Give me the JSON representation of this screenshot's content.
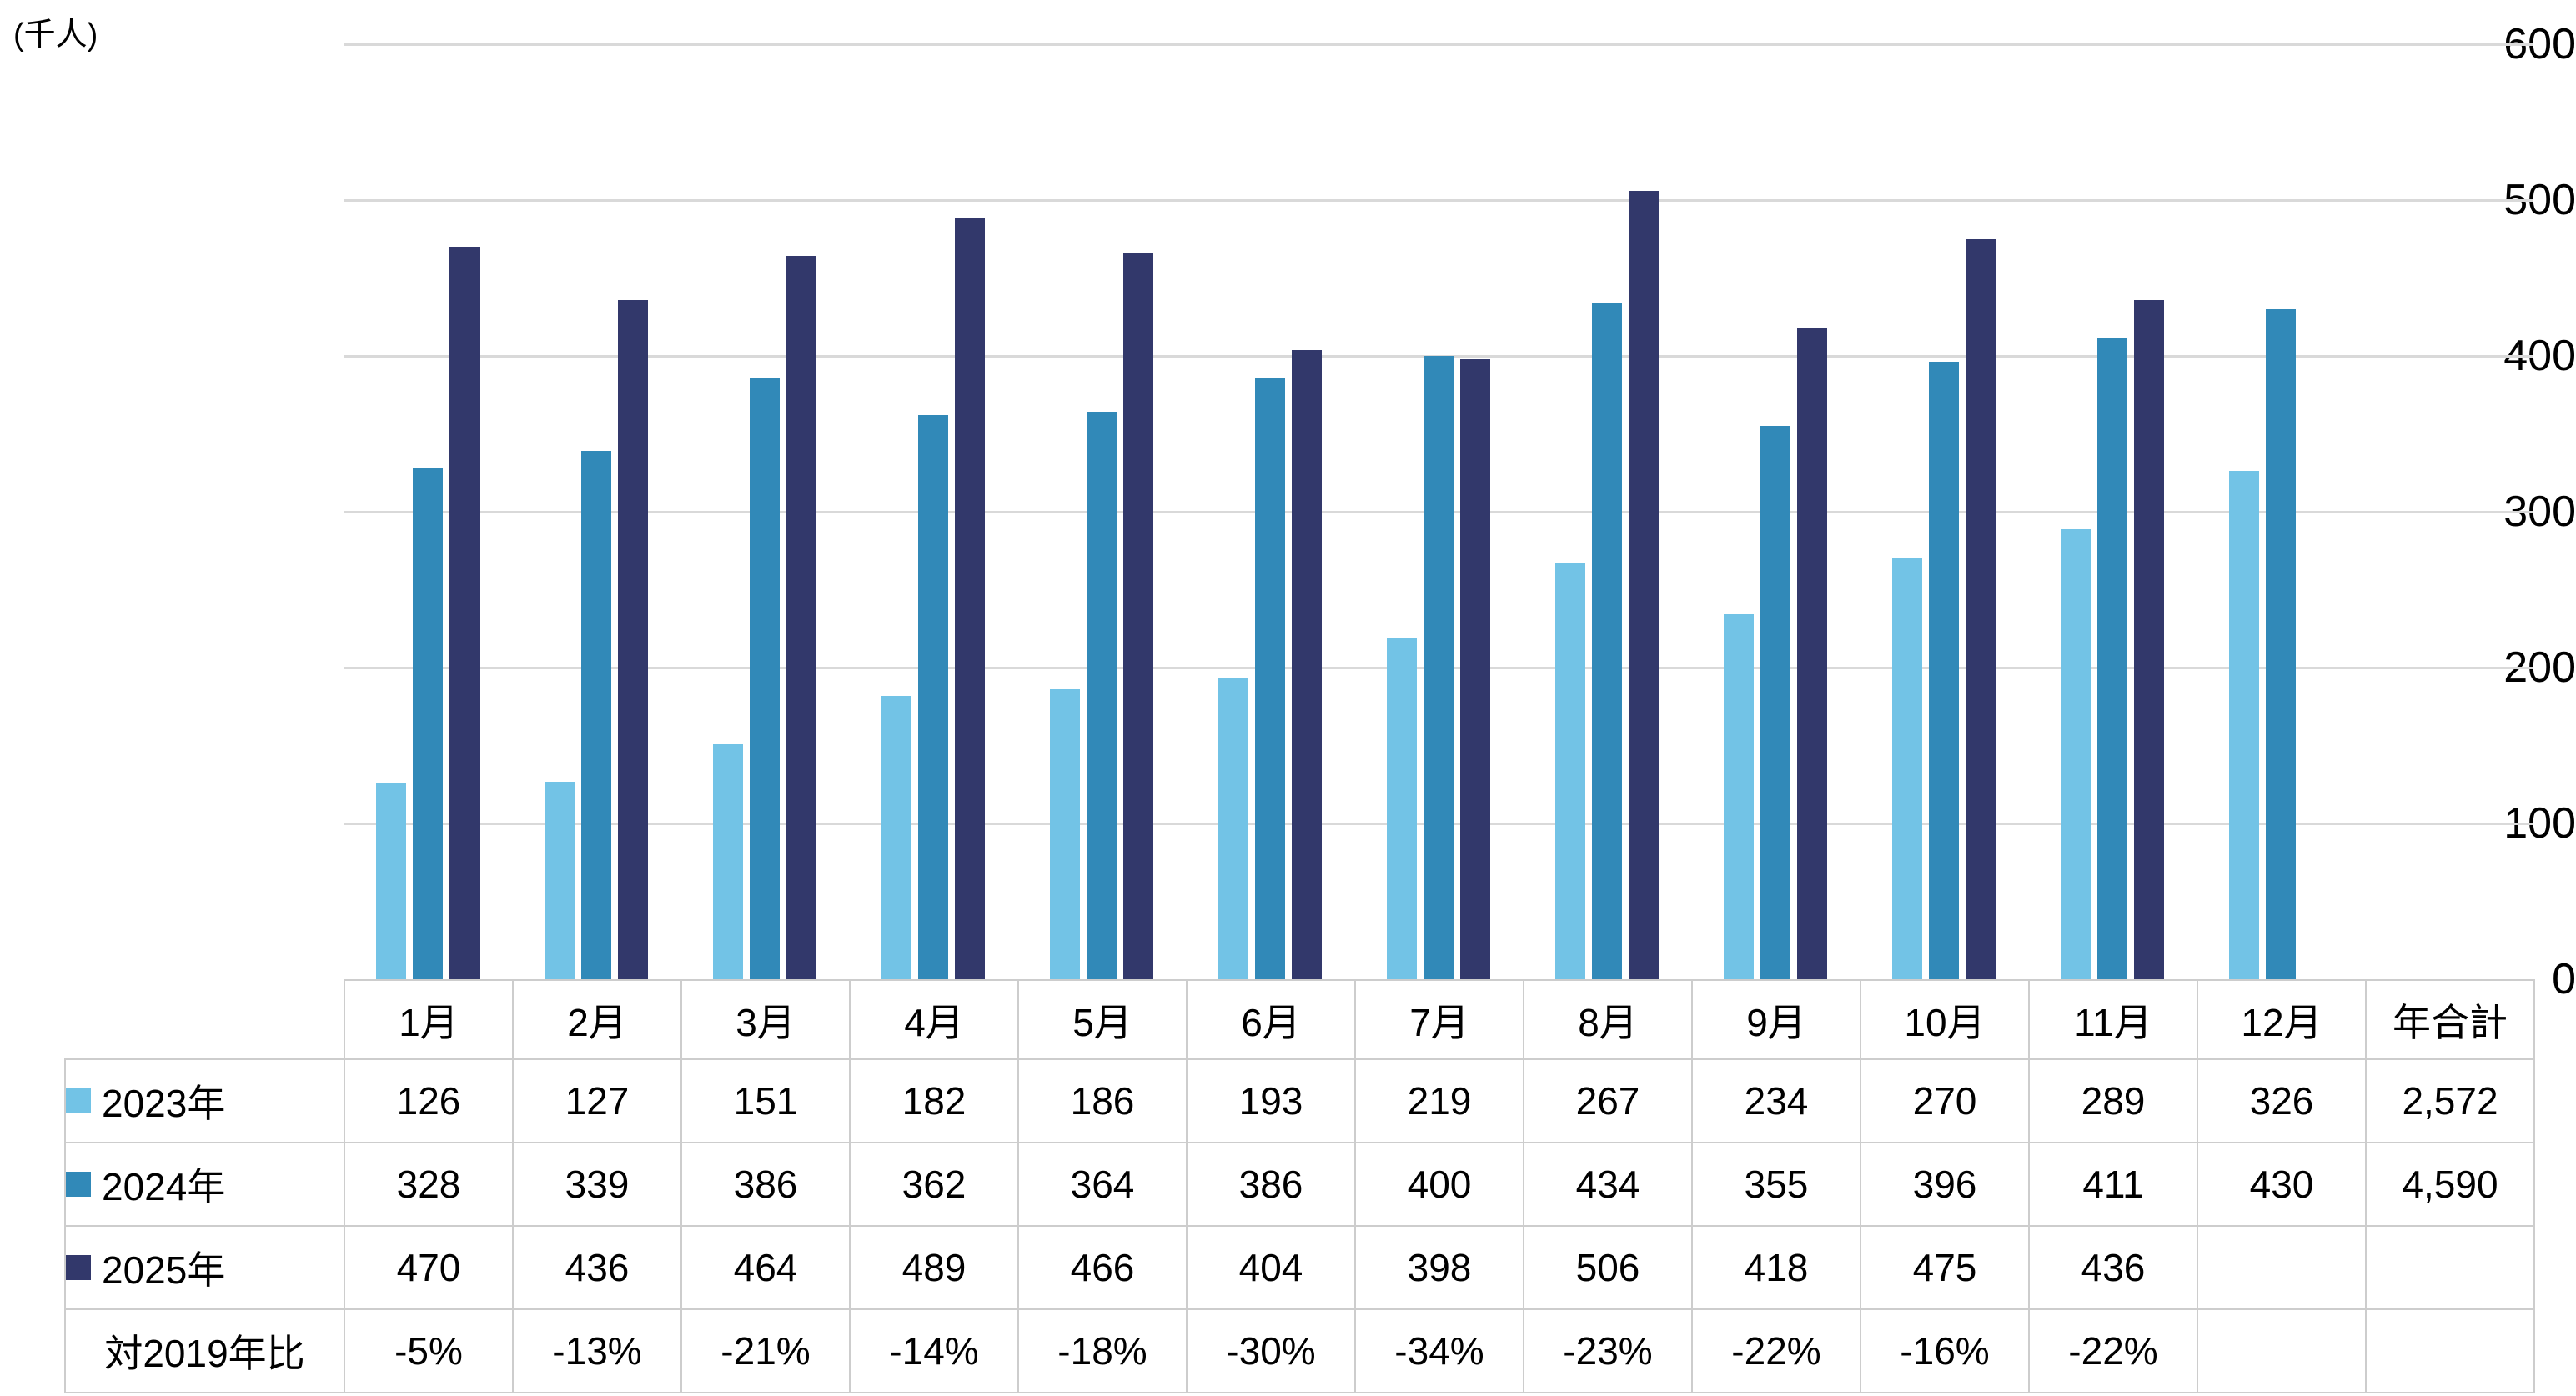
{
  "chart_data": {
    "type": "bar",
    "title": "",
    "unit_label": "(千人)",
    "categories": [
      "1月",
      "2月",
      "3月",
      "4月",
      "5月",
      "6月",
      "7月",
      "8月",
      "9月",
      "10月",
      "11月",
      "12月"
    ],
    "total_column_label": "年合計",
    "series": [
      {
        "name": "2023年",
        "color": "#72C3E6",
        "values": [
          126,
          127,
          151,
          182,
          186,
          193,
          219,
          267,
          234,
          270,
          289,
          326
        ],
        "total": "2,572"
      },
      {
        "name": "2024年",
        "color": "#3189B8",
        "values": [
          328,
          339,
          386,
          362,
          364,
          386,
          400,
          434,
          355,
          396,
          411,
          430
        ],
        "total": "4,590"
      },
      {
        "name": "2025年",
        "color": "#32386B",
        "values": [
          470,
          436,
          464,
          489,
          466,
          404,
          398,
          506,
          418,
          475,
          436,
          null
        ],
        "total": ""
      }
    ],
    "comparison_row": {
      "label": "対2019年比",
      "values": [
        "-5%",
        "-13%",
        "-21%",
        "-14%",
        "-18%",
        "-30%",
        "-34%",
        "-23%",
        "-22%",
        "-16%",
        "-22%",
        ""
      ],
      "total": ""
    },
    "ylim": [
      0,
      600
    ],
    "yticks": [
      0,
      100,
      200,
      300,
      400,
      500,
      600
    ],
    "grid": "horizontal",
    "legend_position": "table-rows"
  }
}
